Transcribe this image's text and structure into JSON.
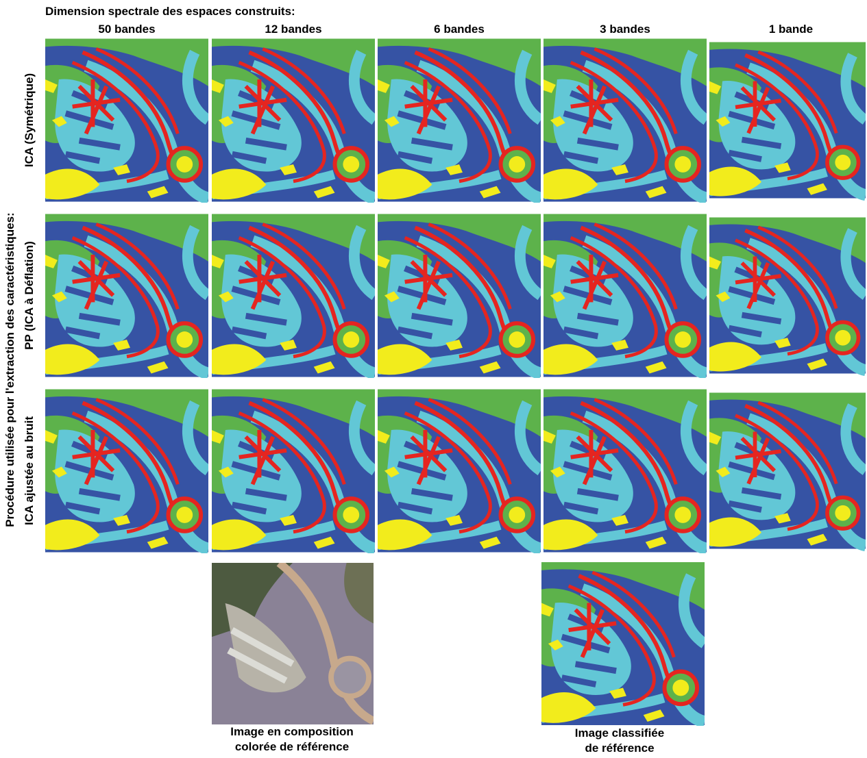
{
  "header": {
    "title": "Dimension spectrale des espaces construits:",
    "columns": [
      "50 bandes",
      "12 bandes",
      "6 bandes",
      "3 bandes",
      "1 bande"
    ]
  },
  "side": {
    "title": "Procédure utilisée pour l'extraction des caractéristiques:",
    "rows": [
      "ICA (Symétrique)",
      "PP (ICA à Déflation)",
      "ICA ajustée au bruit"
    ]
  },
  "references": {
    "color_composite": [
      "Image en composition",
      "colorée de référence"
    ],
    "classified": [
      "Image classifiée",
      "de référence"
    ]
  }
}
